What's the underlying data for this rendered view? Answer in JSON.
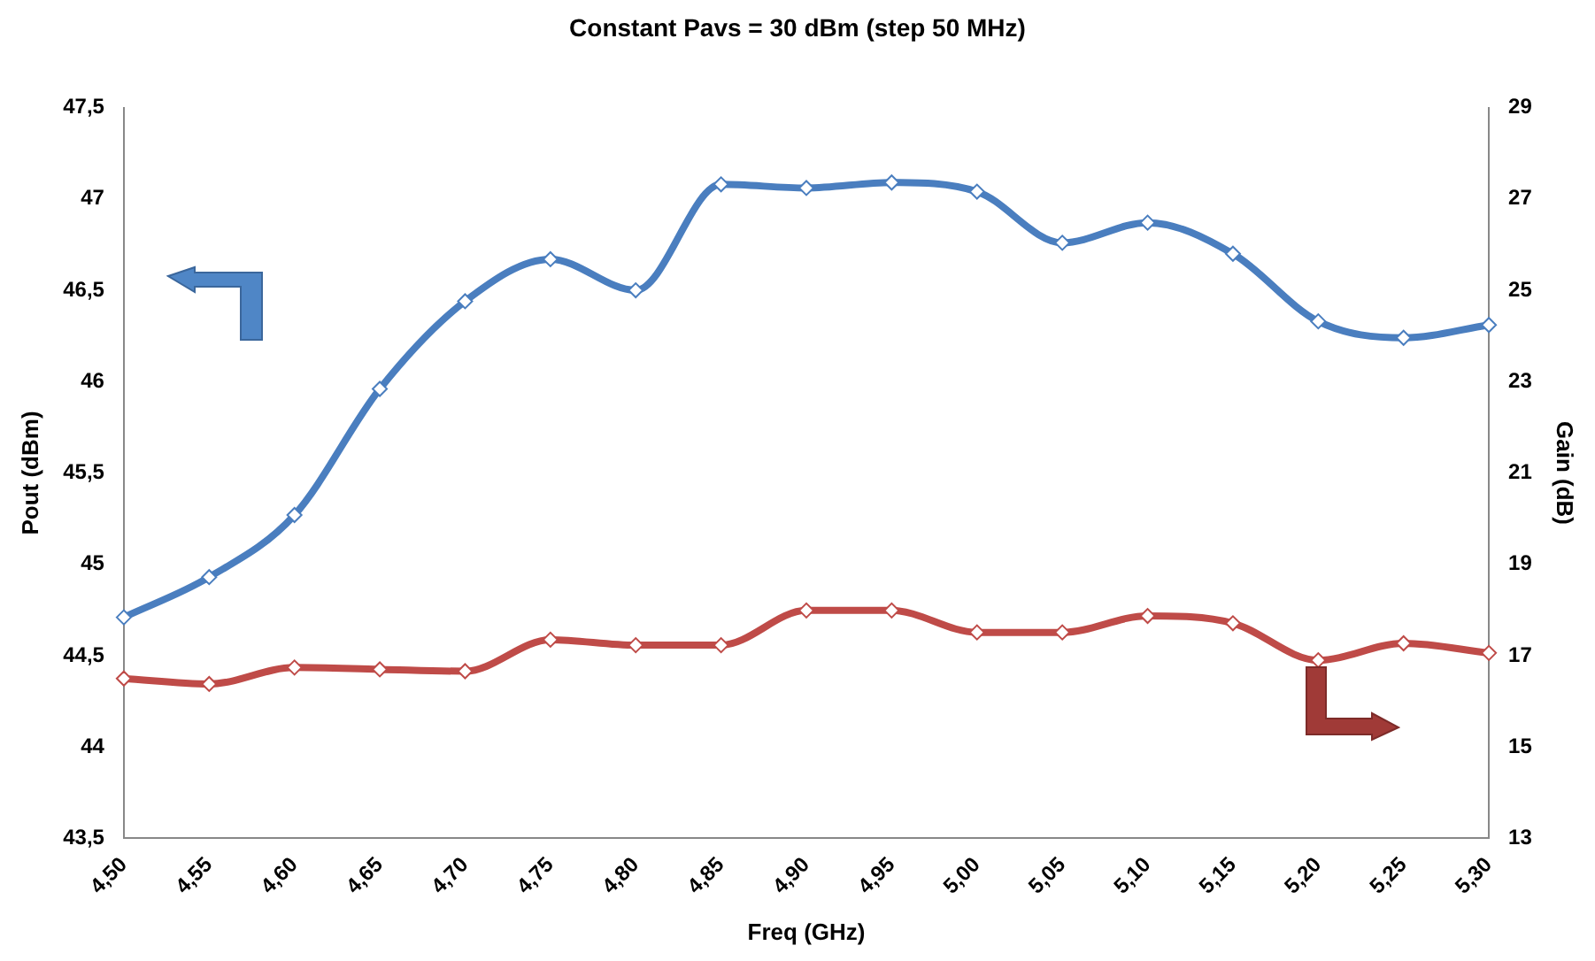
{
  "chart_data": {
    "type": "line",
    "title": "Constant Pavs = 30 dBm (step 50 MHz)",
    "xlabel": "Freq (GHz)",
    "ylabel": "Pout (dBm)",
    "y2label": "Gain (dB)",
    "categories": [
      "4,50",
      "4,55",
      "4,60",
      "4,65",
      "4,70",
      "4,75",
      "4,80",
      "4,85",
      "4,90",
      "4,95",
      "5,00",
      "5,05",
      "5,10",
      "5,15",
      "5,20",
      "5,25",
      "5,30"
    ],
    "series": [
      {
        "color": "#4a7ebf",
        "axis": "y",
        "values": [
          44.71,
          44.93,
          45.27,
          45.96,
          46.44,
          46.67,
          46.5,
          47.08,
          47.06,
          47.09,
          47.04,
          46.76,
          46.87,
          46.7,
          46.33,
          46.24,
          46.31
        ]
      },
      {
        "color": "#bf4b48",
        "axis": "y2",
        "values": [
          16.5,
          16.38,
          16.74,
          16.7,
          16.66,
          17.35,
          17.23,
          17.23,
          17.99,
          17.99,
          17.51,
          17.51,
          17.87,
          17.71,
          16.9,
          17.27,
          17.06
        ]
      }
    ],
    "ylim": [
      43.5,
      47.5
    ],
    "yticks": [
      {
        "value": 43.5,
        "label": "43,5"
      },
      44,
      {
        "value": 44.5,
        "label": "44,5"
      },
      45,
      {
        "value": 45.5,
        "label": "45,5"
      },
      46,
      {
        "value": 46.5,
        "label": "46,5"
      },
      47,
      {
        "value": 47.5,
        "label": "47,5"
      }
    ],
    "y2lim": [
      13,
      29
    ],
    "y2ticks": [
      13,
      15,
      17,
      19,
      21,
      23,
      25,
      27,
      29
    ],
    "grid": false,
    "legend": false,
    "marker": "diamond",
    "line_style": "solid"
  }
}
